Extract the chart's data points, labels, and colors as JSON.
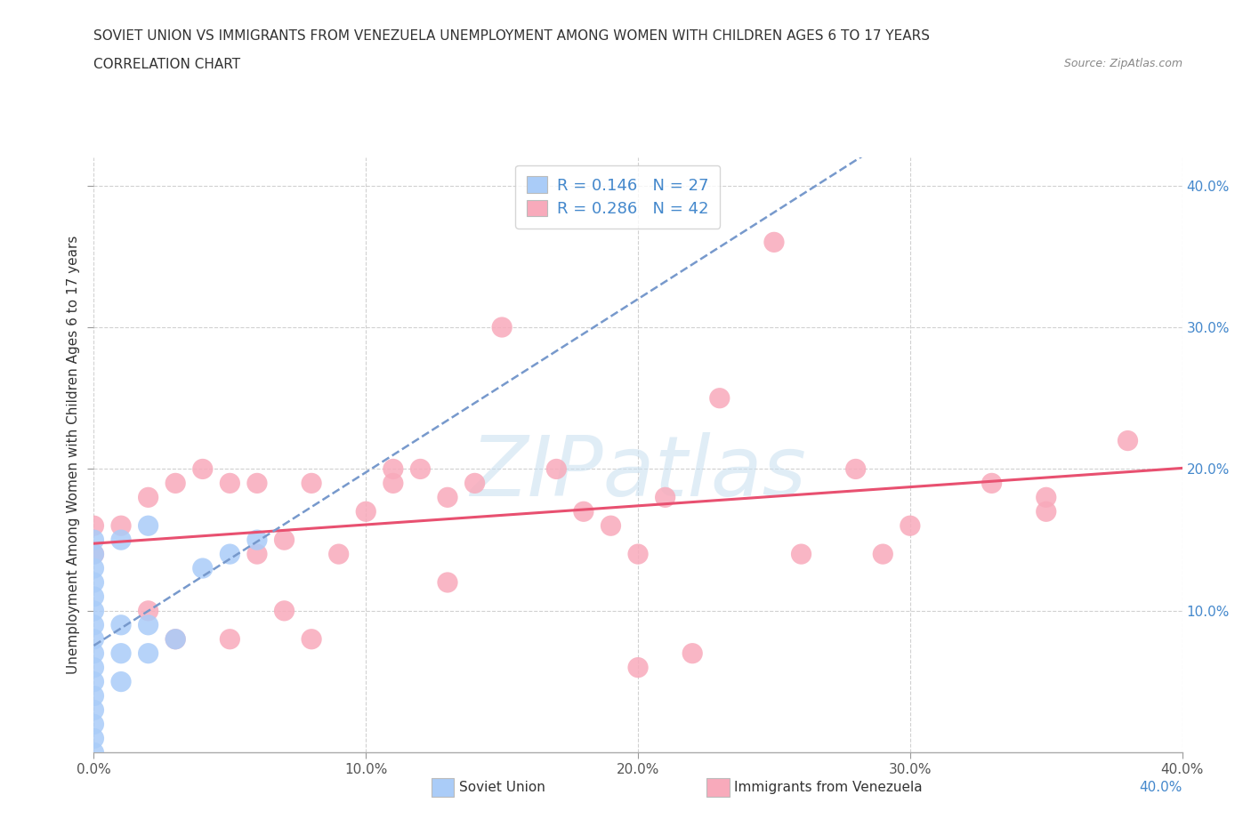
{
  "title_line1": "SOVIET UNION VS IMMIGRANTS FROM VENEZUELA UNEMPLOYMENT AMONG WOMEN WITH CHILDREN AGES 6 TO 17 YEARS",
  "title_line2": "CORRELATION CHART",
  "source": "Source: ZipAtlas.com",
  "ylabel": "Unemployment Among Women with Children Ages 6 to 17 years",
  "xlim": [
    0.0,
    0.4
  ],
  "ylim": [
    0.0,
    0.42
  ],
  "xticks": [
    0.0,
    0.1,
    0.2,
    0.3,
    0.4
  ],
  "yticks": [
    0.1,
    0.2,
    0.3,
    0.4
  ],
  "xtick_labels": [
    "0.0%",
    "10.0%",
    "20.0%",
    "30.0%",
    "40.0%"
  ],
  "right_ytick_labels": [
    "10.0%",
    "20.0%",
    "30.0%",
    "40.0%"
  ],
  "soviet_R": "0.146",
  "soviet_N": "27",
  "venezuela_R": "0.286",
  "venezuela_N": "42",
  "soviet_color": "#aaccf8",
  "venezuela_color": "#f8aabb",
  "soviet_line_color": "#7799cc",
  "venezuela_line_color": "#e85070",
  "watermark_text": "ZIPatlas",
  "background_color": "#ffffff",
  "legend_bottom_labels": [
    "Soviet Union",
    "Immigrants from Venezuela"
  ],
  "soviet_x": [
    0.0,
    0.0,
    0.0,
    0.0,
    0.0,
    0.0,
    0.0,
    0.0,
    0.0,
    0.0,
    0.0,
    0.0,
    0.0,
    0.0,
    0.0,
    0.0,
    0.01,
    0.01,
    0.01,
    0.01,
    0.02,
    0.02,
    0.02,
    0.03,
    0.04,
    0.05,
    0.06
  ],
  "soviet_y": [
    0.0,
    0.01,
    0.02,
    0.03,
    0.04,
    0.05,
    0.06,
    0.07,
    0.08,
    0.09,
    0.1,
    0.11,
    0.12,
    0.13,
    0.14,
    0.15,
    0.05,
    0.07,
    0.09,
    0.15,
    0.07,
    0.09,
    0.16,
    0.08,
    0.13,
    0.14,
    0.15
  ],
  "venezuela_x": [
    0.0,
    0.0,
    0.01,
    0.02,
    0.02,
    0.03,
    0.03,
    0.04,
    0.05,
    0.05,
    0.06,
    0.06,
    0.07,
    0.07,
    0.08,
    0.08,
    0.09,
    0.1,
    0.11,
    0.11,
    0.12,
    0.13,
    0.13,
    0.14,
    0.15,
    0.17,
    0.18,
    0.19,
    0.2,
    0.21,
    0.22,
    0.23,
    0.25,
    0.26,
    0.28,
    0.29,
    0.3,
    0.33,
    0.35,
    0.38,
    0.2,
    0.35
  ],
  "venezuela_y": [
    0.14,
    0.16,
    0.16,
    0.1,
    0.18,
    0.08,
    0.19,
    0.2,
    0.08,
    0.19,
    0.14,
    0.19,
    0.1,
    0.15,
    0.08,
    0.19,
    0.14,
    0.17,
    0.19,
    0.2,
    0.2,
    0.12,
    0.18,
    0.19,
    0.3,
    0.2,
    0.17,
    0.16,
    0.14,
    0.18,
    0.07,
    0.25,
    0.36,
    0.14,
    0.2,
    0.14,
    0.16,
    0.19,
    0.18,
    0.22,
    0.06,
    0.17
  ]
}
